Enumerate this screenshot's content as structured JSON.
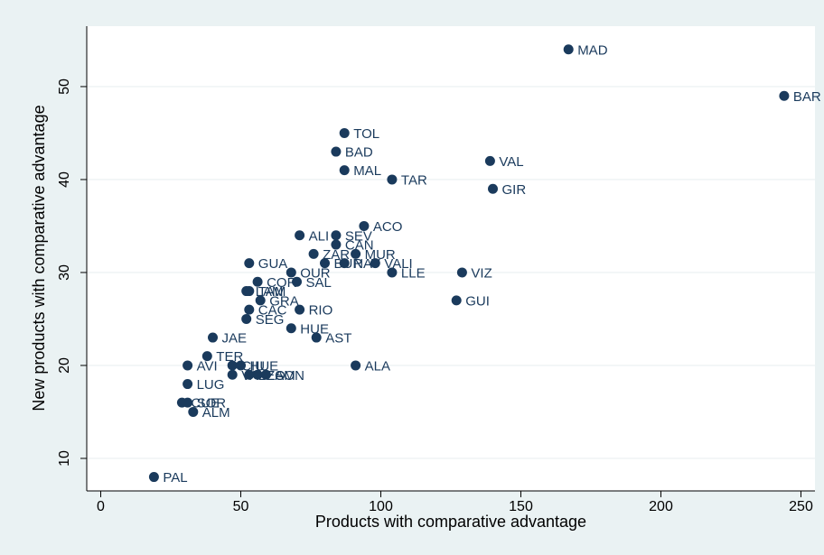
{
  "chart_data": {
    "type": "scatter",
    "title": "",
    "xlabel": "Products with comparative advantage",
    "ylabel": "New products with comparative advantage",
    "xlim": [
      -5,
      255
    ],
    "ylim": [
      6.5,
      56.5
    ],
    "xticks": [
      0,
      50,
      100,
      150,
      200,
      250
    ],
    "yticks": [
      10,
      20,
      30,
      40,
      50
    ],
    "grid": "horizontal",
    "colors": {
      "marker": "#1a3a5c",
      "label": "#1a3a5c",
      "grid": "#e9eff1",
      "background": "#eaf2f3",
      "plot_background": "#ffffff"
    },
    "points": [
      {
        "label": "MAD",
        "x": 167,
        "y": 54
      },
      {
        "label": "BAR",
        "x": 244,
        "y": 49
      },
      {
        "label": "TOL",
        "x": 87,
        "y": 45
      },
      {
        "label": "BAD",
        "x": 84,
        "y": 43
      },
      {
        "label": "VAL",
        "x": 139,
        "y": 42
      },
      {
        "label": "MAL",
        "x": 87,
        "y": 41
      },
      {
        "label": "TAR",
        "x": 104,
        "y": 40
      },
      {
        "label": "GIR",
        "x": 140,
        "y": 39
      },
      {
        "label": "ACO",
        "x": 94,
        "y": 35
      },
      {
        "label": "ALI",
        "x": 71,
        "y": 34
      },
      {
        "label": "SEV",
        "x": 84,
        "y": 34
      },
      {
        "label": "CAN",
        "x": 84,
        "y": 33
      },
      {
        "label": "ZAR",
        "x": 76,
        "y": 32
      },
      {
        "label": "MUR",
        "x": 91,
        "y": 32
      },
      {
        "label": "GUA",
        "x": 53,
        "y": 31
      },
      {
        "label": "BUR",
        "x": 80,
        "y": 31
      },
      {
        "label": "NAV",
        "x": 87,
        "y": 31
      },
      {
        "label": "VALI",
        "x": 98,
        "y": 31
      },
      {
        "label": "OUR",
        "x": 68,
        "y": 30
      },
      {
        "label": "LLE",
        "x": 104,
        "y": 30
      },
      {
        "label": "VIZ",
        "x": 129,
        "y": 30
      },
      {
        "label": "COR",
        "x": 56,
        "y": 29
      },
      {
        "label": "SAL",
        "x": 70,
        "y": 29
      },
      {
        "label": "LAM",
        "x": 52,
        "y": 28
      },
      {
        "label": "TAM",
        "x": 53,
        "y": 28
      },
      {
        "label": "GRA",
        "x": 57,
        "y": 27
      },
      {
        "label": "GUI",
        "x": 127,
        "y": 27
      },
      {
        "label": "CAC",
        "x": 53,
        "y": 26
      },
      {
        "label": "RIO",
        "x": 71,
        "y": 26
      },
      {
        "label": "SEG",
        "x": 52,
        "y": 25
      },
      {
        "label": "HUE",
        "x": 68,
        "y": 24
      },
      {
        "label": "JAE",
        "x": 40,
        "y": 23
      },
      {
        "label": "AST",
        "x": 77,
        "y": 23
      },
      {
        "label": "TER",
        "x": 38,
        "y": 21
      },
      {
        "label": "AVI",
        "x": 31,
        "y": 20
      },
      {
        "label": "CIU",
        "x": 47,
        "y": 20
      },
      {
        "label": "HUE",
        "x": 50,
        "y": 20
      },
      {
        "label": "ALA",
        "x": 91,
        "y": 20
      },
      {
        "label": "VA",
        "x": 47,
        "y": 19
      },
      {
        "label": "LEO",
        "x": 53,
        "y": 19
      },
      {
        "label": "ZAM",
        "x": 56,
        "y": 19
      },
      {
        "label": "SON",
        "x": 59,
        "y": 19
      },
      {
        "label": "LUG",
        "x": 31,
        "y": 18
      },
      {
        "label": "CUE",
        "x": 29,
        "y": 16
      },
      {
        "label": "SOR",
        "x": 31,
        "y": 16
      },
      {
        "label": "ALM",
        "x": 33,
        "y": 15
      },
      {
        "label": "PAL",
        "x": 19,
        "y": 8
      }
    ]
  }
}
